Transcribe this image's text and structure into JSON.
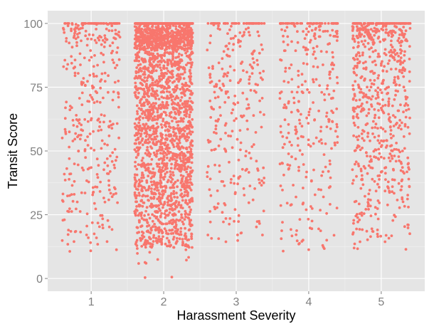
{
  "chart_data": {
    "type": "scatter",
    "style": "jitter strip plot, ggplot2 grey theme",
    "xlabel": "Harassment Severity",
    "ylabel": "Transit Score",
    "x_categories": [
      "1",
      "2",
      "3",
      "4",
      "5"
    ],
    "y_ticks": [
      "0",
      "25",
      "50",
      "75",
      "100"
    ],
    "ylim": [
      -5,
      105
    ],
    "xlim": [
      0.4,
      5.6
    ],
    "grid": true,
    "legend": "none",
    "colors": {
      "panel": "#e5e5e5",
      "grid_major": "#ffffff",
      "grid_minor": "#f2f2f2",
      "point": "#f8766d"
    },
    "series": [
      {
        "category": "1",
        "approx_points": 380,
        "jitter_width": 0.4,
        "value_range": [
          7,
          100
        ],
        "note": "dense band at 100, moderate spread 10-100"
      },
      {
        "category": "2",
        "approx_points": 2600,
        "jitter_width": 0.4,
        "value_range": [
          0,
          100
        ],
        "note": "very dense, heavy band at 100, solid cloud 12-100"
      },
      {
        "category": "3",
        "approx_points": 300,
        "jitter_width": 0.4,
        "value_range": [
          12,
          100
        ],
        "note": "sparser, band at 100"
      },
      {
        "category": "4",
        "approx_points": 330,
        "jitter_width": 0.4,
        "value_range": [
          9,
          100
        ],
        "note": "band at 100, spread 9-100"
      },
      {
        "category": "5",
        "approx_points": 720,
        "jitter_width": 0.4,
        "value_range": [
          10,
          100
        ],
        "note": "band at 100, dense 25-100"
      }
    ]
  }
}
